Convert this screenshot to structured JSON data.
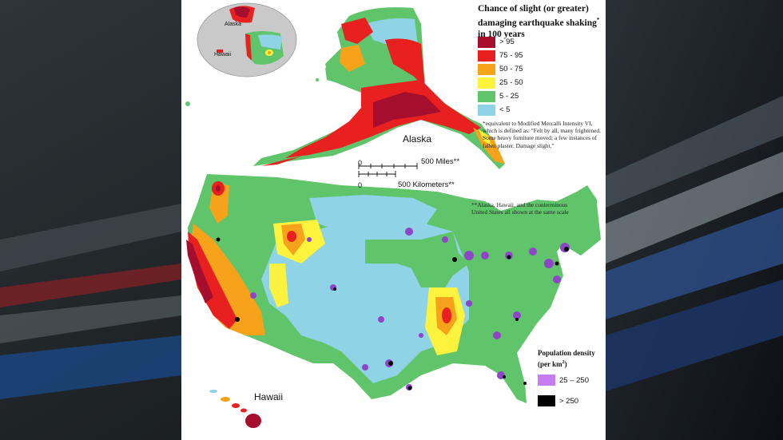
{
  "legend": {
    "title_line1": "Chance of slight (or greater)",
    "title_line2": "damaging earthquake shaking",
    "title_line3": "in 100 years",
    "title_mark": "*",
    "items": [
      {
        "label": "> 95",
        "color": "#a50f2d"
      },
      {
        "label": "75 - 95",
        "color": "#e8201f"
      },
      {
        "label": "50 - 75",
        "color": "#f7a21b"
      },
      {
        "label": "25 - 50",
        "color": "#fdf33f"
      },
      {
        "label": "5 - 25",
        "color": "#5fc46a"
      },
      {
        "label": "< 5",
        "color": "#8fd3e6"
      }
    ]
  },
  "footnotes": {
    "mmi": "*equivalent to Modified Mercalli Intensity VI, which is defined as: \"Felt by all, many frightened. Some heavy furniture moved; a few instances of fallen plaster. Damage slight.\"",
    "scale": "**Alaska, Hawaii, and the conterminous United States all shown at the same scale"
  },
  "map_labels": {
    "alaska": "Alaska",
    "hawaii": "Hawaii",
    "inset_alaska": "Alaska",
    "inset_hawaii": "Hawaii"
  },
  "scalebar": {
    "zero_miles": "0",
    "miles": "500 Miles**",
    "zero_km": "0",
    "km": "500 Kilometers**"
  },
  "population": {
    "title_line1": "Population density",
    "title_line2": "(per km",
    "title_sup": "2",
    "title_end": ")",
    "items": [
      {
        "label": "25 – 250",
        "color": "#c77cf2"
      },
      {
        "label": "> 250",
        "color": "#000000"
      }
    ]
  }
}
